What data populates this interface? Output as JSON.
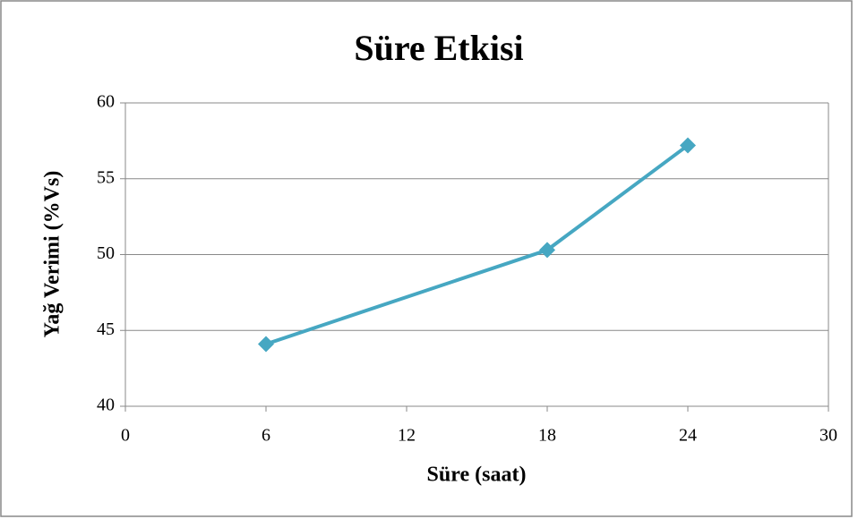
{
  "chart_data": {
    "type": "line",
    "title": "Süre Etkisi",
    "x_label": "Süre (saat)",
    "y_label": "Yağ Verimi (%Vs)",
    "series": [
      {
        "name": "Yağ Verimi",
        "color": "#46a7c2",
        "x": [
          6,
          18,
          24
        ],
        "values": [
          44.1,
          50.3,
          57.2
        ]
      }
    ],
    "xlim": [
      0,
      30
    ],
    "xticks": [
      0,
      6,
      12,
      18,
      24,
      30
    ],
    "ylim": [
      40,
      60
    ],
    "yticks": [
      40,
      45,
      50,
      55,
      60
    ],
    "grid": true
  }
}
